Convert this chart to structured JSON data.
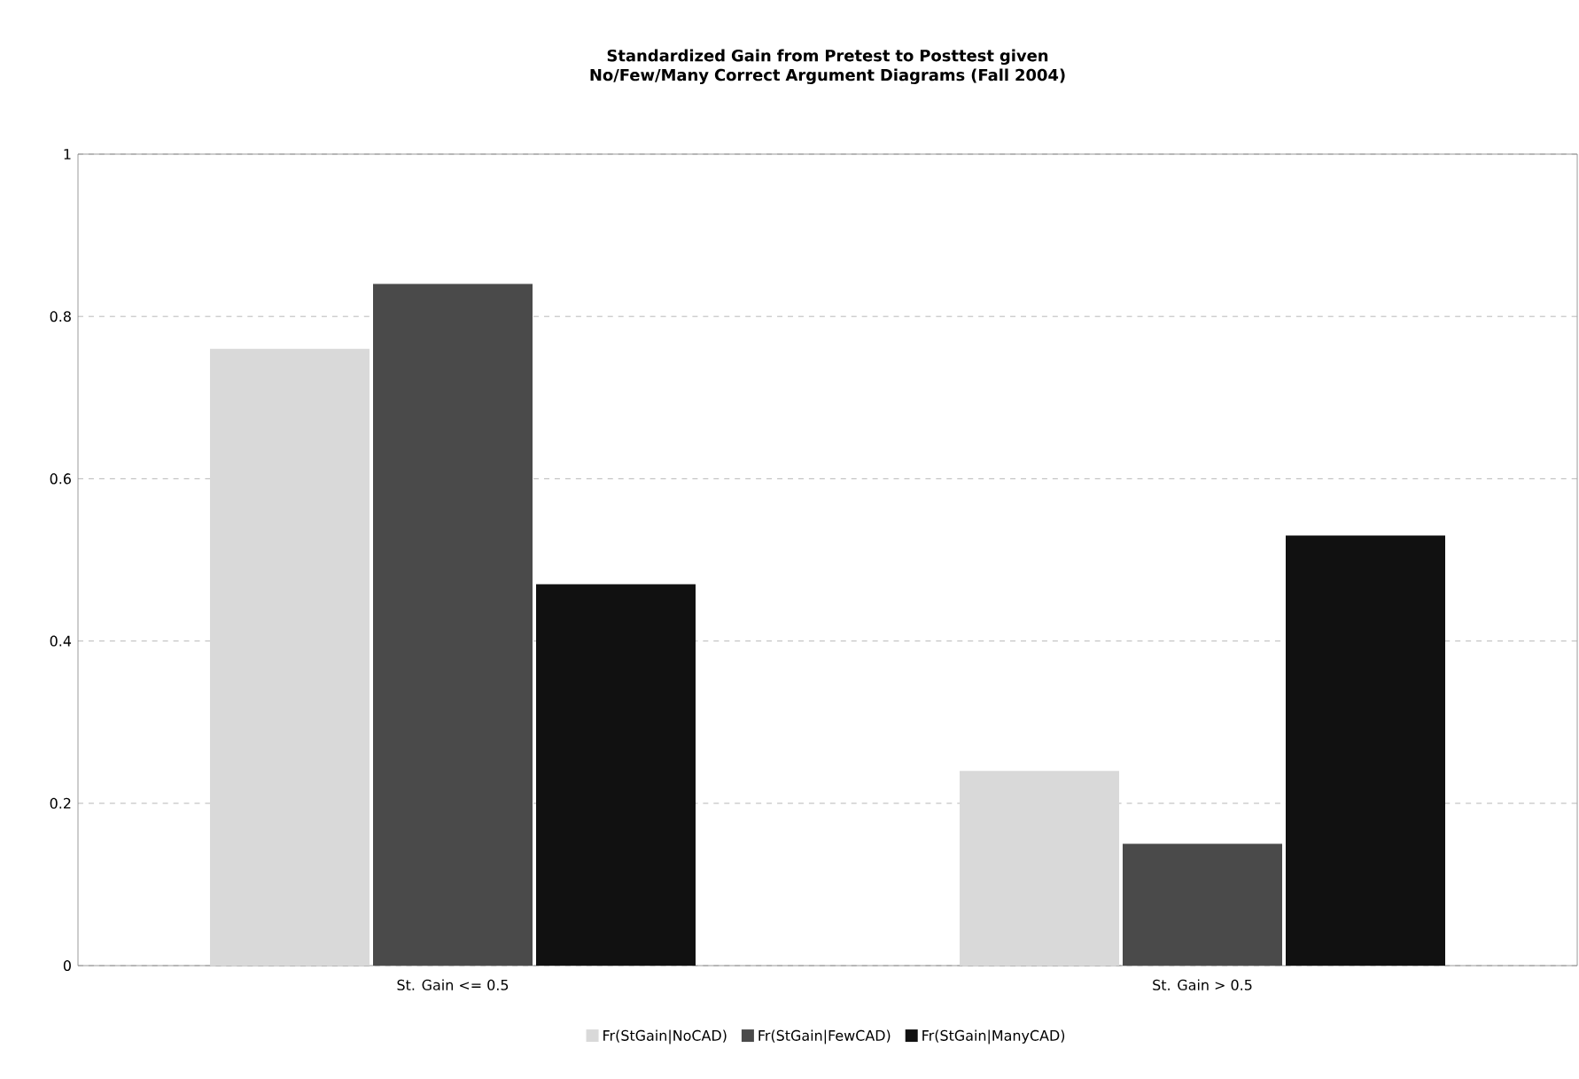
{
  "chart_data": {
    "type": "bar",
    "title": "Standardized Gain from Pretest to Posttest given No/Few/Many Correct Argument Diagrams (Fall 2004)",
    "categories": [
      "St. Gain <= 0.5",
      "St. Gain > 0.5"
    ],
    "series": [
      {
        "name": "Fr(StGain|NoCAD)",
        "color": "#d9d9d9",
        "values": [
          0.76,
          0.24
        ]
      },
      {
        "name": "Fr(StGain|FewCAD)",
        "color": "#4a4a4a",
        "values": [
          0.84,
          0.15
        ]
      },
      {
        "name": "Fr(StGain|ManyCAD)",
        "color": "#111111",
        "values": [
          0.47,
          0.53
        ]
      }
    ],
    "ylim": [
      0,
      1
    ],
    "yticks": [
      0,
      0.2,
      0.4,
      0.6,
      0.8,
      1
    ],
    "grid": "y",
    "legend": "bottom"
  }
}
